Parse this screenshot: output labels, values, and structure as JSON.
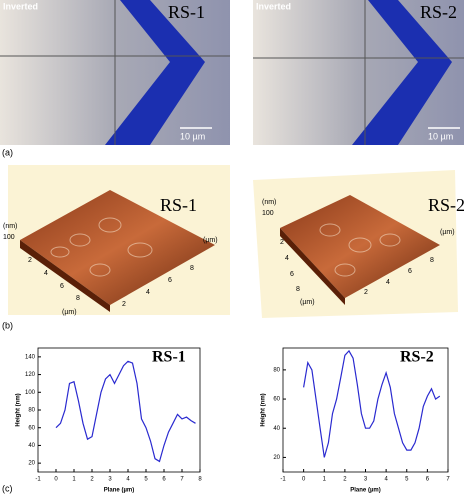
{
  "panel_labels": [
    "(a)",
    "(b)",
    "(c)"
  ],
  "optical": [
    {
      "label": "RS-1",
      "mode": "Inverted",
      "scale": "10 µm"
    },
    {
      "label": "RS-2",
      "mode": "Inverted",
      "scale": "10 µm"
    }
  ],
  "afm": [
    {
      "label": "RS-1",
      "z_unit": "(nm)",
      "z_tick": "100",
      "xy_ticks": [
        "2",
        "4",
        "6",
        "8"
      ],
      "xy_unit": "(µm)"
    },
    {
      "label": "RS-2",
      "z_unit": "(nm)",
      "z_tick": "100",
      "xy_ticks": [
        "2",
        "4",
        "6",
        "8"
      ],
      "xy_unit": "(µm)"
    }
  ],
  "chart_data": [
    {
      "type": "line",
      "title": "RS-1",
      "x_label": "Plane (µm)",
      "y_label": "Height (nm)",
      "x": [
        0,
        0.25,
        0.5,
        0.75,
        1.0,
        1.25,
        1.5,
        1.75,
        2.0,
        2.25,
        2.5,
        2.75,
        3.0,
        3.25,
        3.5,
        3.75,
        4.0,
        4.25,
        4.5,
        4.75,
        5.0,
        5.25,
        5.5,
        5.75,
        6.0,
        6.25,
        6.5,
        6.75,
        7.0,
        7.25,
        7.5,
        7.75
      ],
      "series": [
        {
          "color": "#2a2ad0",
          "values": [
            60,
            65,
            80,
            110,
            112,
            90,
            65,
            47,
            50,
            75,
            100,
            115,
            120,
            110,
            120,
            130,
            135,
            133,
            110,
            70,
            60,
            45,
            25,
            22,
            40,
            55,
            65,
            75,
            70,
            72,
            68,
            65
          ]
        }
      ],
      "xlim": [
        -1,
        8
      ],
      "ylim": [
        10,
        150
      ],
      "xticks": [
        -1,
        0,
        1,
        2,
        3,
        4,
        5,
        6,
        7,
        8
      ],
      "yticks": [
        20,
        40,
        60,
        80,
        100,
        120,
        140
      ]
    },
    {
      "type": "line",
      "title": "RS-2",
      "x_label": "Plane (µm)",
      "y_label": "Height (nm)",
      "x": [
        0,
        0.2,
        0.4,
        0.6,
        0.8,
        1.0,
        1.2,
        1.4,
        1.6,
        1.8,
        2.0,
        2.2,
        2.4,
        2.6,
        2.8,
        3.0,
        3.2,
        3.4,
        3.6,
        3.8,
        4.0,
        4.2,
        4.4,
        4.6,
        4.8,
        5.0,
        5.2,
        5.4,
        5.6,
        5.8,
        6.0,
        6.2,
        6.4,
        6.6
      ],
      "series": [
        {
          "color": "#2a2ad0",
          "values": [
            68,
            85,
            80,
            60,
            40,
            20,
            30,
            50,
            60,
            75,
            90,
            93,
            88,
            70,
            50,
            40,
            40,
            45,
            60,
            70,
            78,
            68,
            50,
            40,
            30,
            25,
            25,
            30,
            40,
            55,
            62,
            67,
            60,
            62
          ]
        }
      ],
      "xlim": [
        -1,
        7
      ],
      "ylim": [
        10,
        95
      ],
      "xticks": [
        -1,
        0,
        1,
        2,
        3,
        4,
        5,
        6,
        7
      ],
      "yticks": [
        20,
        40,
        60,
        80
      ]
    }
  ]
}
